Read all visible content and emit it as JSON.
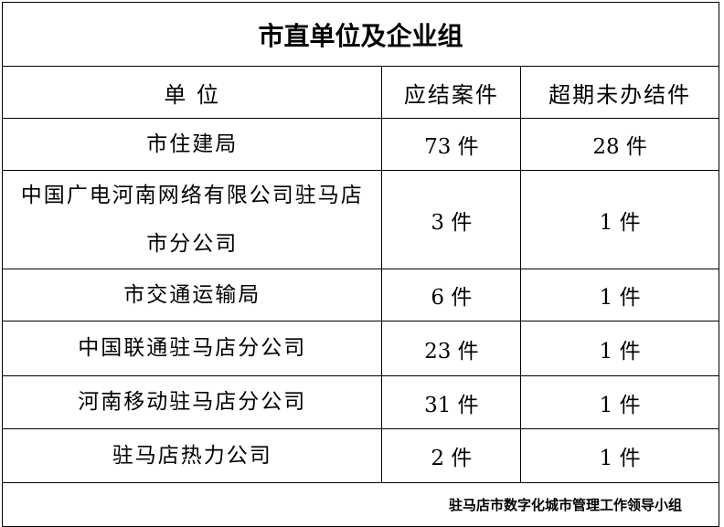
{
  "title": "市直单位及企业组",
  "headers": [
    "单 位",
    "应结案件",
    "超期未办结件"
  ],
  "rows": [
    {
      "unit": "市住建局",
      "due": "73 件",
      "overdue": "28 件"
    },
    {
      "unit": "中国广电河南网络有限公司驻马店市分公司",
      "due": "3 件",
      "overdue": "1 件"
    },
    {
      "unit": "市交通运输局",
      "due": "6 件",
      "overdue": "1 件"
    },
    {
      "unit": "中国联通驻马店分公司",
      "due": "23 件",
      "overdue": "1 件"
    },
    {
      "unit": "河南移动驻马店分公司",
      "due": "31 件",
      "overdue": "1 件"
    },
    {
      "unit": "驻马店热力公司",
      "due": "2 件",
      "overdue": "1 件"
    }
  ],
  "footer": "驻马店市数字化城市管理工作领导小组"
}
